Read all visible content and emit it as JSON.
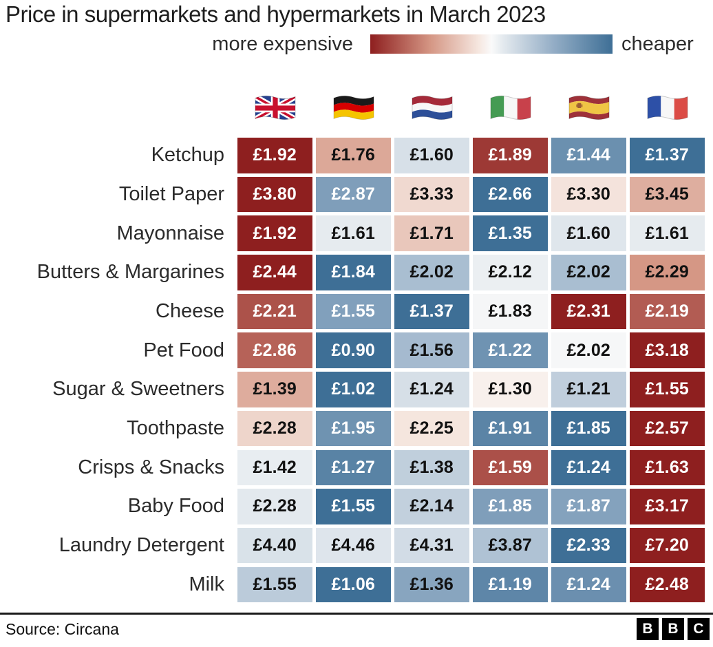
{
  "title": "Price in supermarkets and hypermarkets in March 2023",
  "legend": {
    "left_label": "more expensive",
    "right_label": "cheaper",
    "expensive_color": "#8E1F1F",
    "cheap_color": "#3E6F96",
    "mid_color": "#FAFAFA"
  },
  "chart_data": {
    "type": "heatmap",
    "unit": "£",
    "color_rule": "per-row min-max; row maximum = dark red (more expensive), row minimum = steel blue (cheaper), midpoint = white",
    "columns": [
      {
        "country": "United Kingdom",
        "flag": "gb"
      },
      {
        "country": "Germany",
        "flag": "de"
      },
      {
        "country": "Netherlands",
        "flag": "nl"
      },
      {
        "country": "Italy",
        "flag": "it"
      },
      {
        "country": "Spain",
        "flag": "es"
      },
      {
        "country": "France",
        "flag": "fr"
      }
    ],
    "rows": [
      {
        "label": "Ketchup",
        "values": [
          1.92,
          1.76,
          1.6,
          1.89,
          1.44,
          1.37
        ]
      },
      {
        "label": "Toilet Paper",
        "values": [
          3.8,
          2.87,
          3.33,
          2.66,
          3.3,
          3.45
        ]
      },
      {
        "label": "Mayonnaise",
        "values": [
          1.92,
          1.61,
          1.71,
          1.35,
          1.6,
          1.61
        ]
      },
      {
        "label": "Butters & Margarines",
        "values": [
          2.44,
          1.84,
          2.02,
          2.12,
          2.02,
          2.29
        ]
      },
      {
        "label": "Cheese",
        "values": [
          2.21,
          1.55,
          1.37,
          1.83,
          2.31,
          2.19
        ]
      },
      {
        "label": "Pet Food",
        "values": [
          2.86,
          0.9,
          1.56,
          1.22,
          2.02,
          3.18
        ]
      },
      {
        "label": "Sugar & Sweetners",
        "values": [
          1.39,
          1.02,
          1.24,
          1.3,
          1.21,
          1.55
        ]
      },
      {
        "label": "Toothpaste",
        "values": [
          2.28,
          1.95,
          2.25,
          1.91,
          1.85,
          2.57
        ]
      },
      {
        "label": "Crisps & Snacks",
        "values": [
          1.42,
          1.27,
          1.38,
          1.59,
          1.24,
          1.63
        ]
      },
      {
        "label": "Baby Food",
        "values": [
          2.28,
          1.55,
          2.14,
          1.85,
          1.87,
          3.17
        ]
      },
      {
        "label": "Laundry Detergent",
        "values": [
          4.4,
          4.46,
          4.31,
          3.87,
          2.33,
          7.2
        ]
      },
      {
        "label": "Milk",
        "values": [
          1.55,
          1.06,
          1.36,
          1.19,
          1.24,
          2.48
        ]
      }
    ]
  },
  "footer": {
    "source": "Source: Circana",
    "logo_letters": [
      "B",
      "B",
      "C"
    ]
  }
}
